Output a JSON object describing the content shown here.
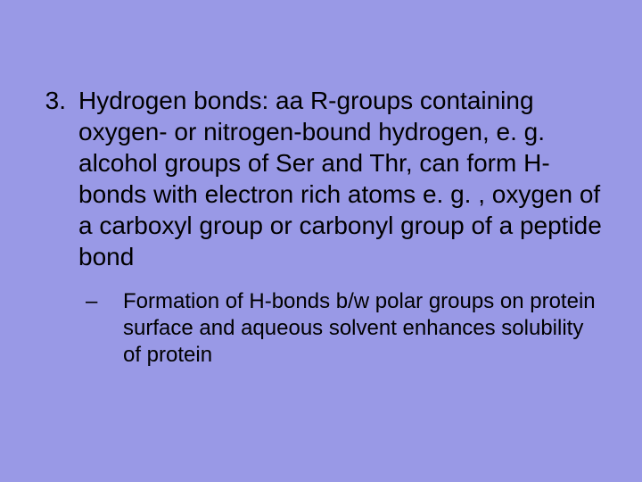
{
  "slide": {
    "background_color": "#9999e6",
    "text_color": "#000000",
    "main_item": {
      "number": "3.",
      "text": "Hydrogen bonds: aa R-groups containing oxygen- or nitrogen-bound hydrogen, e. g. alcohol groups of Ser and Thr, can form H-bonds with electron rich atoms e. g. , oxygen of a carboxyl group or carbonyl group of a peptide bond",
      "font_size": 28,
      "font_family": "Arial"
    },
    "sub_item": {
      "marker": "–",
      "text": "Formation of H-bonds b/w polar groups on protein surface and aqueous solvent enhances solubility of protein",
      "font_size": 24,
      "font_family": "Arial"
    }
  }
}
